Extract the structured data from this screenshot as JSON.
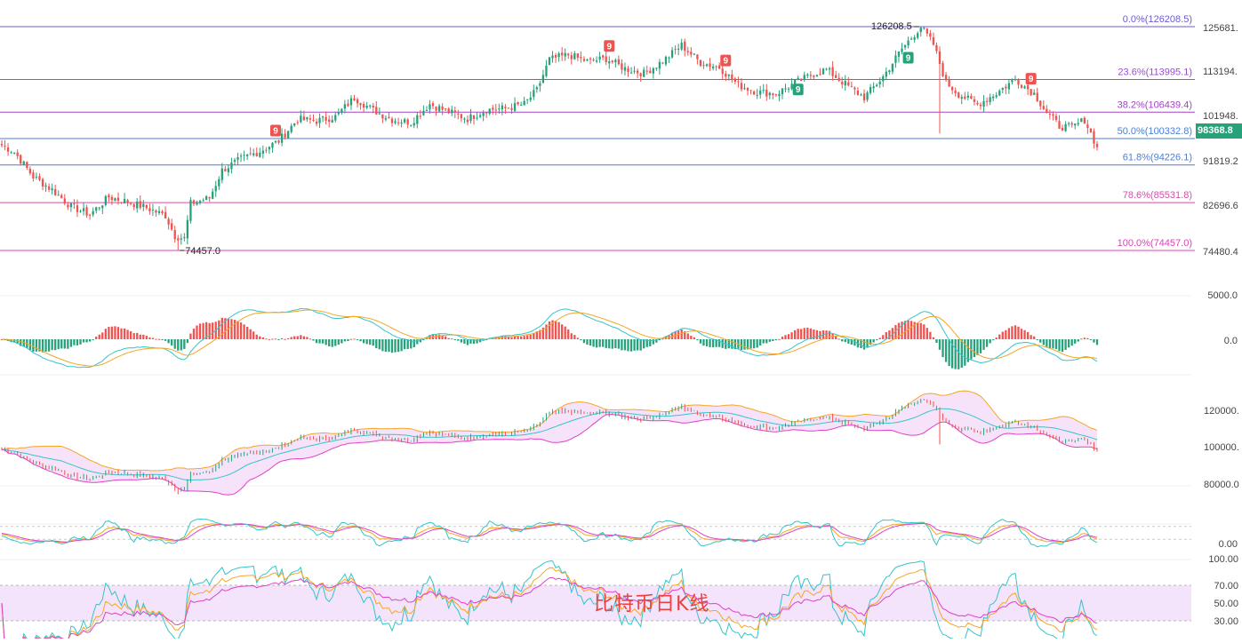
{
  "title": "比特币日K线",
  "colors": {
    "up": "#26a17b",
    "down": "#ef5350",
    "td_up": "#ef5350",
    "td_down": "#26a17b",
    "macd_dif": "#35c4c8",
    "macd_dea": "#f5a623",
    "boll_upper": "#f5a623",
    "boll_mid": "#35c4c8",
    "boll_lower": "#e040c8",
    "kdj_k": "#f5a623",
    "kdj_d": "#e040c8",
    "kdj_j": "#35c4c8",
    "rsi_band": "#f3e3fb"
  },
  "last_price_label": "98368.8",
  "high_label": "126208.5",
  "low_label": "74457.0",
  "price_axis_ticks": [
    "125681.",
    "113194.",
    "101948.",
    "91819.2",
    "82696.6",
    "74480.4"
  ],
  "fib_levels": [
    {
      "label": "0.0%(126208.5)",
      "price": 126208.5,
      "color": "#6b5bd6"
    },
    {
      "label": "23.6%(113995.1)",
      "price": 113995.1,
      "color": "#9a4bd8"
    },
    {
      "label": "38.2%(106439.4)",
      "price": 106439.4,
      "color": "#a543c7"
    },
    {
      "label": "50.0%(100332.8)",
      "price": 100332.8,
      "color": "#4a7fd6"
    },
    {
      "label": "61.8%(94226.1)",
      "price": 94226.1,
      "color": "#4a7fd6"
    },
    {
      "label": "78.6%(85531.8)",
      "price": 85531.8,
      "color": "#d34fa8"
    },
    {
      "label": "100.0%(74457.0)",
      "price": 74457.0,
      "color": "#e040b8"
    }
  ],
  "td_markers": [
    {
      "label": "9",
      "type": "sell",
      "bar_frac": 0.25
    },
    {
      "label": "9",
      "type": "sell",
      "bar_frac": 0.555
    },
    {
      "label": "9",
      "type": "sell",
      "bar_frac": 0.66
    },
    {
      "label": "9",
      "type": "buy",
      "bar_frac": 0.727
    },
    {
      "label": "9",
      "type": "buy",
      "bar_frac": 0.827
    },
    {
      "label": "9",
      "type": "sell",
      "bar_frac": 0.94
    }
  ],
  "macd_axis_ticks": [
    "5000.0",
    "0.0"
  ],
  "boll_axis_ticks": [
    "120000.",
    "100000.",
    "80000.0"
  ],
  "kdj_axis_ticks": [
    "0.00"
  ],
  "rsi_axis_ticks": [
    "100.00",
    "70.00",
    "50.00",
    "30.00"
  ],
  "chart_data": {
    "type": "candlestick",
    "title": "比特币日K线",
    "interval": "1D",
    "price_range": [
      74457.0,
      126208.5
    ],
    "anchors": [
      [
        0,
        98800
      ],
      [
        4,
        97200
      ],
      [
        10,
        91500
      ],
      [
        16,
        88500
      ],
      [
        22,
        84600
      ],
      [
        28,
        82800
      ],
      [
        34,
        86800
      ],
      [
        40,
        85700
      ],
      [
        46,
        84300
      ],
      [
        52,
        82500
      ],
      [
        55,
        77800
      ],
      [
        58,
        77200
      ],
      [
        60,
        85300
      ],
      [
        66,
        86600
      ],
      [
        70,
        93000
      ],
      [
        76,
        95600
      ],
      [
        82,
        97400
      ],
      [
        88,
        99800
      ],
      [
        94,
        104800
      ],
      [
        100,
        104400
      ],
      [
        106,
        105400
      ],
      [
        112,
        109800
      ],
      [
        118,
        106900
      ],
      [
        124,
        104700
      ],
      [
        130,
        104100
      ],
      [
        136,
        108300
      ],
      [
        142,
        106500
      ],
      [
        148,
        104900
      ],
      [
        154,
        107000
      ],
      [
        160,
        107300
      ],
      [
        166,
        108300
      ],
      [
        170,
        111500
      ],
      [
        174,
        118600
      ],
      [
        180,
        119700
      ],
      [
        186,
        118200
      ],
      [
        192,
        118800
      ],
      [
        198,
        116500
      ],
      [
        204,
        115400
      ],
      [
        210,
        118200
      ],
      [
        216,
        121900
      ],
      [
        222,
        117900
      ],
      [
        228,
        116800
      ],
      [
        234,
        112700
      ],
      [
        240,
        111100
      ],
      [
        246,
        110700
      ],
      [
        252,
        113200
      ],
      [
        258,
        115300
      ],
      [
        262,
        116300
      ],
      [
        268,
        112900
      ],
      [
        274,
        109800
      ],
      [
        280,
        114600
      ],
      [
        286,
        121100
      ],
      [
        290,
        124500
      ],
      [
        292,
        126208.5
      ],
      [
        296,
        122100
      ],
      [
        300,
        113300
      ],
      [
        304,
        110600
      ],
      [
        310,
        108200
      ],
      [
        316,
        110800
      ],
      [
        322,
        114100
      ],
      [
        328,
        110700
      ],
      [
        332,
        106400
      ],
      [
        336,
        103200
      ],
      [
        340,
        102900
      ],
      [
        344,
        104700
      ],
      [
        348,
        98368.8
      ]
    ],
    "macd": {
      "dif_range": [
        -4500,
        4800
      ],
      "dea_range": [
        -3800,
        3900
      ],
      "hist_range": [
        -2600,
        1900
      ]
    },
    "boll": {
      "upper_range": [
        85000,
        128000
      ],
      "mid_range": [
        80000,
        119000
      ],
      "lower_range": [
        75000,
        112000
      ]
    },
    "kdj": {
      "range": [
        0,
        100
      ]
    },
    "rsi": {
      "band": [
        30,
        70
      ],
      "range": [
        0,
        100
      ]
    }
  }
}
